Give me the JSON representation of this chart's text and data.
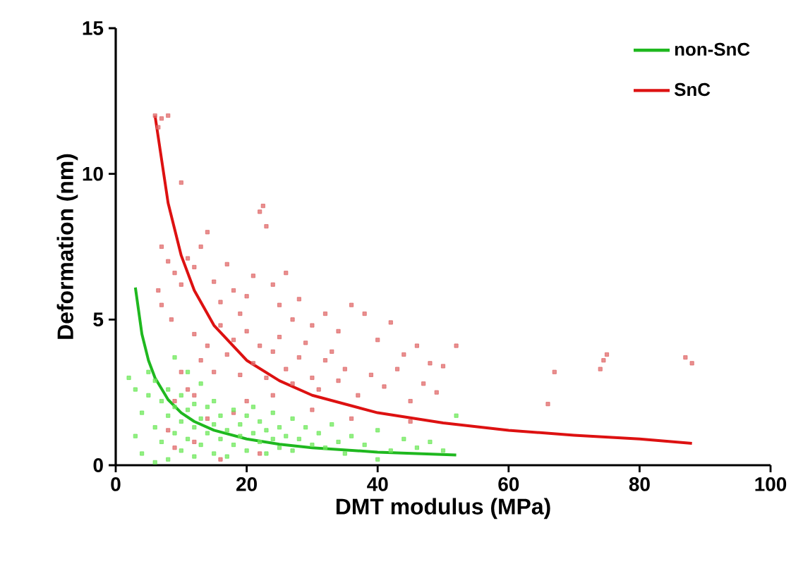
{
  "chart_data": {
    "type": "scatter",
    "xlabel": "DMT modulus (MPa)",
    "ylabel": "Deformation (nm)",
    "xlim": [
      0,
      100
    ],
    "xticks": [
      0,
      20,
      40,
      60,
      80,
      100
    ],
    "ylim": [
      0,
      15
    ],
    "yticks": [
      0,
      5,
      10,
      15
    ],
    "grid": false,
    "legend": "top right",
    "marker": "square",
    "series": [
      {
        "color": "#e06a6a",
        "x": [
          6,
          7,
          8,
          6.5,
          10,
          22,
          22.5,
          23,
          7,
          8,
          9,
          6.5,
          7,
          8.5,
          10,
          11,
          12,
          13,
          14,
          15,
          16,
          17,
          18,
          19,
          20,
          21,
          24,
          25,
          26,
          27,
          28,
          30,
          32,
          34,
          36,
          38,
          40,
          42,
          44,
          46,
          48,
          50,
          52,
          12,
          13,
          14,
          15,
          16,
          17,
          18,
          19,
          20,
          21,
          22,
          23,
          24,
          25,
          26,
          27,
          28,
          29,
          30,
          31,
          32,
          33,
          34,
          35,
          37,
          39,
          41,
          43,
          45,
          47,
          49,
          10,
          11,
          9,
          12,
          14,
          18,
          20,
          24,
          30,
          36,
          45,
          66,
          67,
          74,
          74.5,
          75,
          87,
          88,
          8,
          12,
          22,
          16,
          9
        ],
        "values": [
          12,
          11.9,
          12,
          11.6,
          9.7,
          8.7,
          8.9,
          8.2,
          7.5,
          7,
          6.6,
          6,
          5.5,
          5,
          6.2,
          7.1,
          6.8,
          7.5,
          8,
          6.3,
          5.6,
          6.9,
          6,
          5.2,
          5.8,
          6.5,
          6.2,
          5.5,
          6.6,
          5,
          5.7,
          4.8,
          5.2,
          4.6,
          5.5,
          5.2,
          4.3,
          4.9,
          3.8,
          4.1,
          3.5,
          3.4,
          4.1,
          4.5,
          3.6,
          4.1,
          3.2,
          4.8,
          3.8,
          4.3,
          3.1,
          4.6,
          3.5,
          4.1,
          3,
          3.9,
          4.4,
          3.3,
          2.8,
          3.7,
          4.2,
          3,
          2.6,
          3.6,
          3.9,
          2.9,
          3.3,
          2.4,
          3.1,
          2.7,
          3.3,
          2.2,
          2.8,
          2.5,
          3.2,
          2.6,
          2.2,
          2.4,
          1.6,
          1.8,
          2.2,
          2.4,
          1.9,
          1.6,
          1.5,
          2.1,
          3.2,
          3.3,
          3.6,
          3.8,
          3.7,
          3.5,
          1.2,
          0.8,
          0.4,
          0.2,
          0.6
        ]
      },
      {
        "color": "#6de85a",
        "x": [
          2,
          3,
          4,
          5,
          5,
          6,
          6,
          7,
          7,
          8,
          8,
          9,
          9,
          10,
          10,
          10,
          11,
          11,
          12,
          12,
          12,
          13,
          13,
          14,
          14,
          15,
          15,
          15,
          16,
          16,
          17,
          17,
          18,
          18,
          19,
          19,
          20,
          20,
          21,
          21,
          22,
          22,
          23,
          23,
          24,
          24,
          25,
          25,
          26,
          27,
          27,
          28,
          29,
          30,
          31,
          32,
          33,
          34,
          35,
          36,
          38,
          40,
          42,
          44,
          46,
          48,
          50,
          52,
          40,
          3,
          4,
          6,
          8,
          11,
          9,
          13
        ],
        "values": [
          3,
          2.6,
          1.8,
          3.2,
          2.4,
          2.9,
          1.3,
          2.2,
          0.8,
          1.7,
          2.6,
          1.1,
          2,
          1.5,
          0.5,
          2.4,
          1.9,
          0.9,
          1.3,
          2.1,
          0.3,
          1.6,
          0.7,
          2,
          1.1,
          1.4,
          0.4,
          2.2,
          1.7,
          0.9,
          1.2,
          0.3,
          1.9,
          0.7,
          1.4,
          1,
          1.7,
          0.5,
          1.1,
          2,
          0.8,
          1.5,
          1.2,
          0.4,
          1.8,
          0.9,
          1.3,
          0.6,
          1,
          1.6,
          0.5,
          0.9,
          1.3,
          0.7,
          1.1,
          0.6,
          1.4,
          0.8,
          0.4,
          1,
          0.7,
          1.2,
          0.5,
          0.9,
          0.6,
          0.8,
          0.5,
          1.7,
          0.2,
          1,
          0.4,
          0.1,
          0.2,
          3.2,
          3.7,
          2.8
        ]
      },
      {
        "type": "line",
        "name": "non-SnC",
        "color": "#1fb81f",
        "marker": "none",
        "line_style": "solid",
        "x": [
          3,
          4,
          5,
          6,
          8,
          10,
          12,
          15,
          20,
          25,
          30,
          40,
          52
        ],
        "values": [
          6.1,
          4.5,
          3.6,
          3,
          2.25,
          1.8,
          1.5,
          1.2,
          0.9,
          0.72,
          0.6,
          0.45,
          0.35
        ]
      },
      {
        "type": "line",
        "name": "SnC",
        "color": "#dd1111",
        "marker": "none",
        "line_style": "solid",
        "x": [
          6,
          8,
          10,
          12,
          15,
          20,
          25,
          30,
          40,
          50,
          60,
          70,
          80,
          88
        ],
        "values": [
          12,
          9,
          7.2,
          6,
          4.8,
          3.6,
          2.9,
          2.4,
          1.8,
          1.45,
          1.2,
          1.03,
          0.9,
          0.75
        ]
      }
    ]
  }
}
